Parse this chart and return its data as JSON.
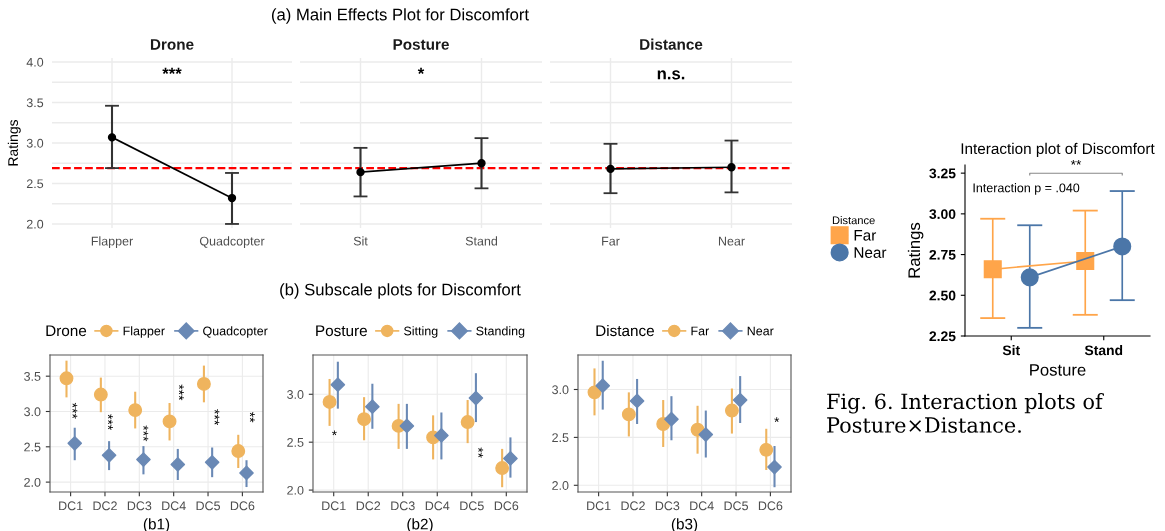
{
  "chart_data": [
    {
      "type": "line",
      "title": "Drone",
      "ylabel": "Ratings",
      "categories": [
        "Flapper",
        "Quadcopter"
      ],
      "series": [
        {
          "color": "#000000",
          "values": [
            3.07,
            2.32
          ],
          "errors": [
            [
              2.69,
              3.46
            ],
            [
              2.0,
              2.63
            ]
          ]
        }
      ],
      "ylim": [
        1.95,
        4.05
      ],
      "yticks": [
        {
          "value": 2.0,
          "label": "2.0"
        },
        {
          "value": 2.25,
          "label": null
        },
        {
          "value": 2.5,
          "label": "2.5"
        },
        {
          "value": 2.75,
          "label": null
        },
        {
          "value": 3.0,
          "label": "3.0"
        },
        {
          "value": 3.25,
          "label": null
        },
        {
          "value": 3.5,
          "label": "3.5"
        },
        {
          "value": 3.75,
          "label": null
        },
        {
          "value": 4.0,
          "label": "4.0"
        }
      ],
      "grid": true,
      "marker": "circle",
      "line_style": "solid",
      "ref_lines": [
        {
          "axis": "y",
          "value": 2.69,
          "color": "#ff0000",
          "line_style": "dashed"
        }
      ],
      "annotations": [
        "(a) Main Effects Plot for Discomfort",
        "***"
      ]
    },
    {
      "type": "line",
      "title": "Posture",
      "categories": [
        "Sit",
        "Stand"
      ],
      "series": [
        {
          "color": "#000000",
          "values": [
            2.64,
            2.75
          ],
          "errors": [
            [
              2.34,
              2.94
            ],
            [
              2.44,
              3.06
            ]
          ]
        }
      ],
      "ylim": [
        1.95,
        4.05
      ],
      "grid": true,
      "marker": "circle",
      "line_style": "solid",
      "tick_labels": "x",
      "ref_lines": [
        {
          "axis": "y",
          "value": 2.69,
          "color": "#ff0000",
          "line_style": "dashed"
        }
      ],
      "annotations": [
        "*"
      ],
      "yticks": [
        2.0,
        2.25,
        2.5,
        2.75,
        3.0,
        3.25,
        3.5,
        3.75,
        4.0
      ]
    },
    {
      "type": "line",
      "title": "Distance",
      "categories": [
        "Far",
        "Near"
      ],
      "series": [
        {
          "color": "#000000",
          "values": [
            2.68,
            2.7
          ],
          "errors": [
            [
              2.38,
              2.99
            ],
            [
              2.39,
              3.03
            ]
          ]
        }
      ],
      "ylim": [
        1.95,
        4.05
      ],
      "grid": true,
      "marker": "circle",
      "line_style": "solid",
      "tick_labels": "x",
      "ref_lines": [
        {
          "axis": "y",
          "value": 2.69,
          "color": "#ff0000",
          "line_style": "dashed"
        }
      ],
      "annotations": [
        "n.s."
      ],
      "yticks": [
        2.0,
        2.25,
        2.5,
        2.75,
        3.0,
        3.25,
        3.5,
        3.75,
        4.0
      ]
    },
    {
      "type": "scatter",
      "xlabel": "(b1)",
      "legend_title": "Drone",
      "categories": [
        "DC1",
        "DC2",
        "DC3",
        "DC4",
        "DC5",
        "DC6"
      ],
      "series": [
        {
          "name": "Flapper",
          "color": "#efb45e",
          "marker": "circle",
          "values": [
            3.47,
            3.24,
            3.02,
            2.86,
            3.39,
            2.44
          ],
          "errors": [
            [
              3.2,
              3.72
            ],
            [
              2.99,
              3.48
            ],
            [
              2.76,
              3.28
            ],
            [
              2.59,
              3.12
            ],
            [
              3.13,
              3.65
            ],
            [
              2.2,
              2.67
            ]
          ]
        },
        {
          "name": "Quadcopter",
          "color": "#6a89b5",
          "marker": "diamond",
          "values": [
            2.55,
            2.38,
            2.32,
            2.25,
            2.28,
            2.13
          ],
          "errors": [
            [
              2.31,
              2.77
            ],
            [
              2.17,
              2.58
            ],
            [
              2.11,
              2.51
            ],
            [
              2.03,
              2.47
            ],
            [
              2.07,
              2.49
            ],
            [
              1.93,
              2.31
            ]
          ]
        }
      ],
      "ylim": [
        1.86,
        3.8
      ],
      "yticks": [
        {
          "value": 2.0,
          "label": "2.0"
        },
        {
          "value": 2.5,
          "label": "2.5"
        },
        {
          "value": 3.0,
          "label": "3.0"
        },
        {
          "value": 3.5,
          "label": "3.5"
        }
      ],
      "grid": true,
      "legend": "top",
      "annotations": [
        "(b) Subscale plots for Discomfort",
        "***",
        "***",
        "***",
        "***",
        "***",
        "**"
      ]
    },
    {
      "type": "scatter",
      "xlabel": "(b2)",
      "legend_title": "Posture",
      "categories": [
        "DC1",
        "DC2",
        "DC3",
        "DC4",
        "DC5",
        "DC6"
      ],
      "series": [
        {
          "name": "Sitting",
          "color": "#efb45e",
          "marker": "circle",
          "values": [
            2.92,
            2.74,
            2.67,
            2.55,
            2.71,
            2.23
          ],
          "errors": [
            [
              2.67,
              3.16
            ],
            [
              2.52,
              2.97
            ],
            [
              2.43,
              2.9
            ],
            [
              2.32,
              2.78
            ],
            [
              2.49,
              2.94
            ],
            [
              2.03,
              2.43
            ]
          ]
        },
        {
          "name": "Standing",
          "color": "#6a89b5",
          "marker": "diamond",
          "values": [
            3.1,
            2.87,
            2.67,
            2.57,
            2.96,
            2.33
          ],
          "errors": [
            [
              2.85,
              3.34
            ],
            [
              2.64,
              3.11
            ],
            [
              2.43,
              2.9
            ],
            [
              2.32,
              2.81
            ],
            [
              2.71,
              3.22
            ],
            [
              2.13,
              2.55
            ]
          ]
        }
      ],
      "ylim": [
        1.98,
        3.41
      ],
      "yticks": [
        {
          "value": 2.0,
          "label": "2.0"
        },
        {
          "value": 2.5,
          "label": "2.5"
        },
        {
          "value": 3.0,
          "label": "3.0"
        }
      ],
      "grid": true,
      "legend": "top",
      "annotations": [
        "*",
        "**"
      ]
    },
    {
      "type": "scatter",
      "xlabel": "(b3)",
      "legend_title": "Distance",
      "categories": [
        "DC1",
        "DC2",
        "DC3",
        "DC4",
        "DC5",
        "DC6"
      ],
      "series": [
        {
          "name": "Far",
          "color": "#efb45e",
          "marker": "circle",
          "values": [
            2.97,
            2.74,
            2.64,
            2.58,
            2.78,
            2.37
          ],
          "errors": [
            [
              2.73,
              3.22
            ],
            [
              2.51,
              2.97
            ],
            [
              2.4,
              2.89
            ],
            [
              2.33,
              2.83
            ],
            [
              2.54,
              3.01
            ],
            [
              2.16,
              2.59
            ]
          ]
        },
        {
          "name": "Near",
          "color": "#6a89b5",
          "marker": "diamond",
          "values": [
            3.04,
            2.88,
            2.69,
            2.53,
            2.89,
            2.19
          ],
          "errors": [
            [
              2.79,
              3.3
            ],
            [
              2.64,
              3.11
            ],
            [
              2.47,
              2.93
            ],
            [
              2.29,
              2.78
            ],
            [
              2.65,
              3.14
            ],
            [
              1.98,
              2.41
            ]
          ]
        }
      ],
      "ylim": [
        1.93,
        3.36
      ],
      "yticks": [
        {
          "value": 2.0,
          "label": "2.0"
        },
        {
          "value": 2.5,
          "label": "2.5"
        },
        {
          "value": 3.0,
          "label": "3.0"
        }
      ],
      "grid": true,
      "legend": "top",
      "annotations": [
        "*"
      ]
    },
    {
      "type": "line",
      "title": "Interaction plot of Discomfort",
      "xlabel": "Posture",
      "ylabel": "Ratings",
      "legend_title": "Distance",
      "categories": [
        "Sit",
        "Stand"
      ],
      "series": [
        {
          "name": "Far",
          "color": "#ffa54a",
          "marker": "square",
          "values": [
            2.66,
            2.71
          ],
          "errors": [
            [
              2.36,
              2.97
            ],
            [
              2.38,
              3.02
            ]
          ]
        },
        {
          "name": "Near",
          "color": "#4b76a8",
          "marker": "circle",
          "values": [
            2.61,
            2.8
          ],
          "errors": [
            [
              2.3,
              2.93
            ],
            [
              2.47,
              3.14
            ]
          ]
        }
      ],
      "ylim": [
        2.25,
        3.3
      ],
      "yticks": [
        {
          "value": 2.25,
          "label": "2.25"
        },
        {
          "value": 2.5,
          "label": "2.50"
        },
        {
          "value": 2.75,
          "label": "2.75"
        },
        {
          "value": 3.0,
          "label": "3.00"
        },
        {
          "value": 3.25,
          "label": "3.25"
        }
      ],
      "legend": "left",
      "line_style": "solid",
      "annotations": [
        "Interaction p = .040",
        "Fig. 6. Interaction plots of Posture×Distance.",
        "**"
      ]
    }
  ]
}
